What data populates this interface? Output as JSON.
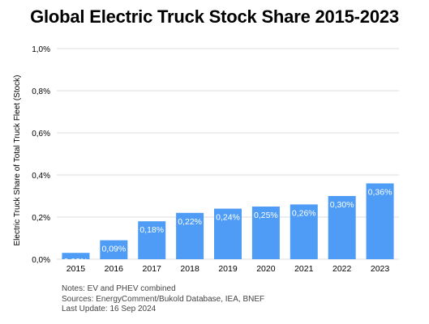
{
  "chart_data": {
    "type": "bar",
    "title": "Global Electric Truck Stock Share 2015-2023",
    "xlabel": "",
    "ylabel": "Electric Truck Share of Total Truck Fleet (Stock)",
    "categories": [
      "2015",
      "2016",
      "2017",
      "2018",
      "2019",
      "2020",
      "2021",
      "2022",
      "2023"
    ],
    "values": [
      0.03,
      0.09,
      0.18,
      0.22,
      0.24,
      0.25,
      0.26,
      0.3,
      0.36
    ],
    "value_labels": [
      "0,03%",
      "0,09%",
      "0,18%",
      "0,22%",
      "0,24%",
      "0,25%",
      "0,26%",
      "0,30%",
      "0,36%"
    ],
    "ylim": [
      0,
      1.0
    ],
    "yticks": [
      0,
      0.2,
      0.4,
      0.6,
      0.8,
      1.0
    ],
    "ytick_labels": [
      "0,0%",
      "0,2%",
      "0,4%",
      "0,6%",
      "0,8%",
      "1,0%"
    ],
    "grid": true,
    "bar_color": "#4e9cf5",
    "grid_color": "#dddddd"
  },
  "notes": {
    "line1": "Notes: EV and PHEV combined",
    "line2": "Sources: EnergyComment/Bukold Database, IEA, BNEF",
    "line3": "Last Update: 16 Sep 2024"
  }
}
